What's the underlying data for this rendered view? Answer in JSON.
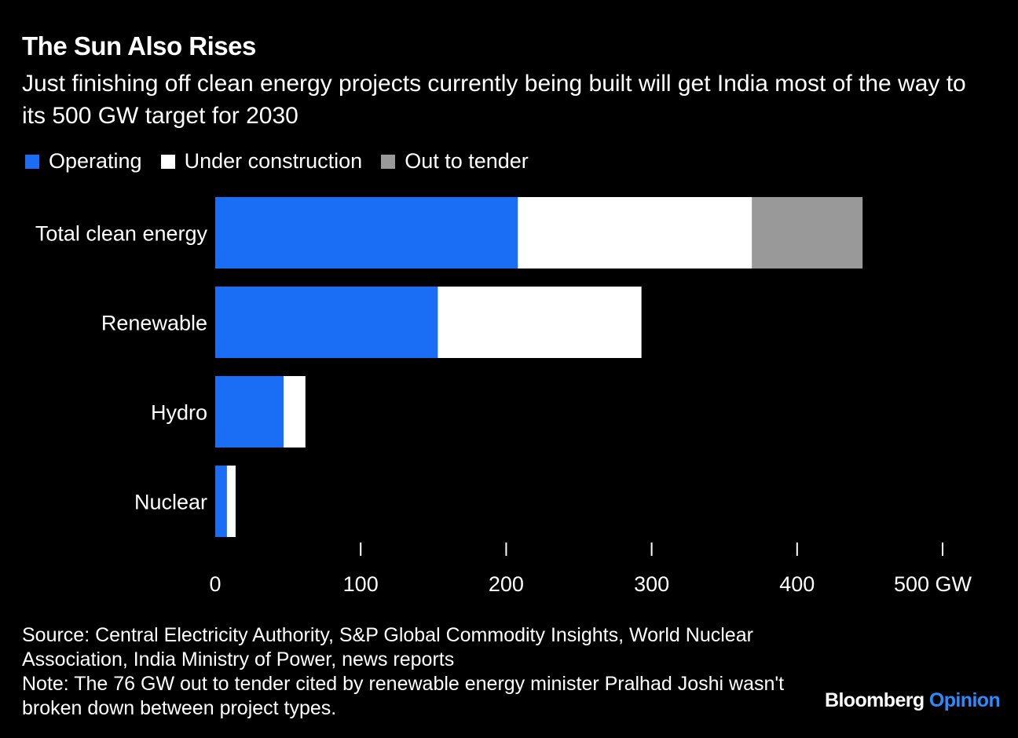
{
  "title": "The Sun Also Rises",
  "subtitle": "Just finishing off clean energy projects currently being built will get India most of the way to its 500 GW target for 2030",
  "legend": [
    {
      "label": "Operating",
      "color": "#1a6ef5"
    },
    {
      "label": "Under construction",
      "color": "#ffffff"
    },
    {
      "label": "Out to tender",
      "color": "#999999"
    }
  ],
  "chart_data": {
    "type": "bar",
    "orientation": "horizontal",
    "stacked": true,
    "categories": [
      "Total clean energy",
      "Renewable",
      "Hydro",
      "Nuclear"
    ],
    "series": [
      {
        "name": "Operating",
        "color": "#1a6ef5",
        "values": [
          208,
          153,
          47,
          8
        ]
      },
      {
        "name": "Under construction",
        "color": "#ffffff",
        "values": [
          161,
          140,
          15,
          6
        ]
      },
      {
        "name": "Out to tender",
        "color": "#999999",
        "values": [
          76,
          0,
          0,
          0
        ]
      }
    ],
    "xlim": [
      0,
      500
    ],
    "xticks": [
      0,
      100,
      200,
      300,
      400,
      500
    ],
    "xtick_labels": [
      "0",
      "100",
      "200",
      "300",
      "400",
      "500 GW"
    ],
    "xlabel": "",
    "ylabel": ""
  },
  "footer": {
    "source": "Source: Central Electricity Authority, S&P Global Commodity Insights, World Nuclear Association, India Ministry of Power, news reports",
    "note": "Note: The 76 GW out to tender cited by renewable energy minister Pralhad Joshi wasn't broken down between project types."
  },
  "brand": {
    "name": "Bloomberg",
    "suffix": "Opinion"
  }
}
